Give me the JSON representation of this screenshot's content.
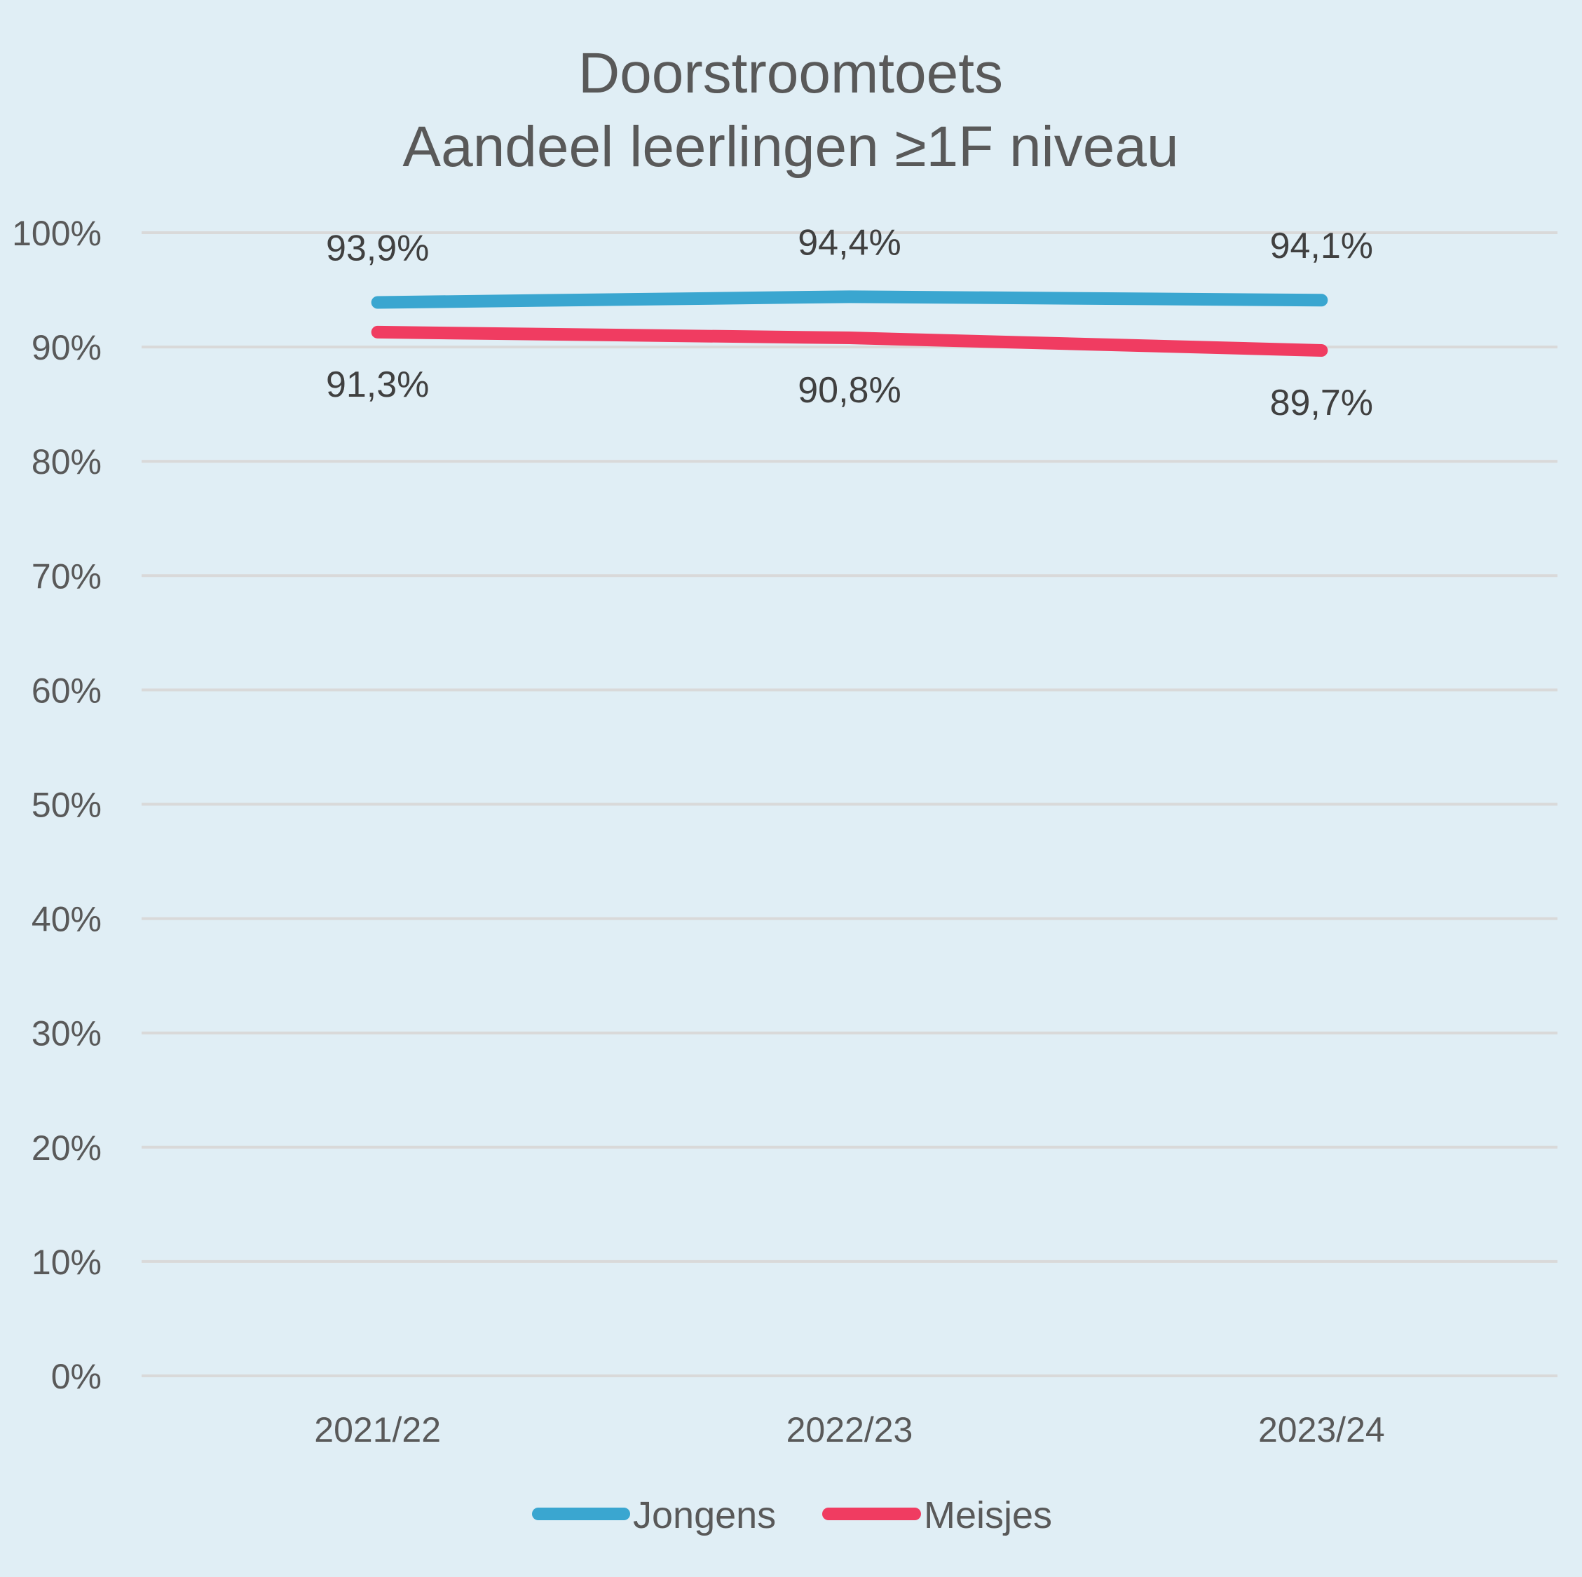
{
  "chart_data": {
    "type": "line",
    "title": [
      "Doorstroomtoets",
      "Aandeel leerlingen ≥1F niveau"
    ],
    "xlabel": "",
    "ylabel": "",
    "categories": [
      "2021/22",
      "2022/23",
      "2023/24"
    ],
    "ylim": [
      0,
      100
    ],
    "yticks": [
      "0%",
      "10%",
      "20%",
      "30%",
      "40%",
      "50%",
      "60%",
      "70%",
      "80%",
      "90%",
      "100%"
    ],
    "grid": true,
    "legend": "bottom",
    "series": [
      {
        "name": "Jongens",
        "values": [
          93.9,
          94.4,
          94.1
        ],
        "labels": [
          "93,9%",
          "94,4%",
          "94,1%"
        ],
        "color": "#3aa6d0"
      },
      {
        "name": "Meisjes",
        "values": [
          91.3,
          90.8,
          89.7
        ],
        "labels": [
          "91,3%",
          "90,8%",
          "89,7%"
        ],
        "color": "#f03c61"
      }
    ]
  }
}
